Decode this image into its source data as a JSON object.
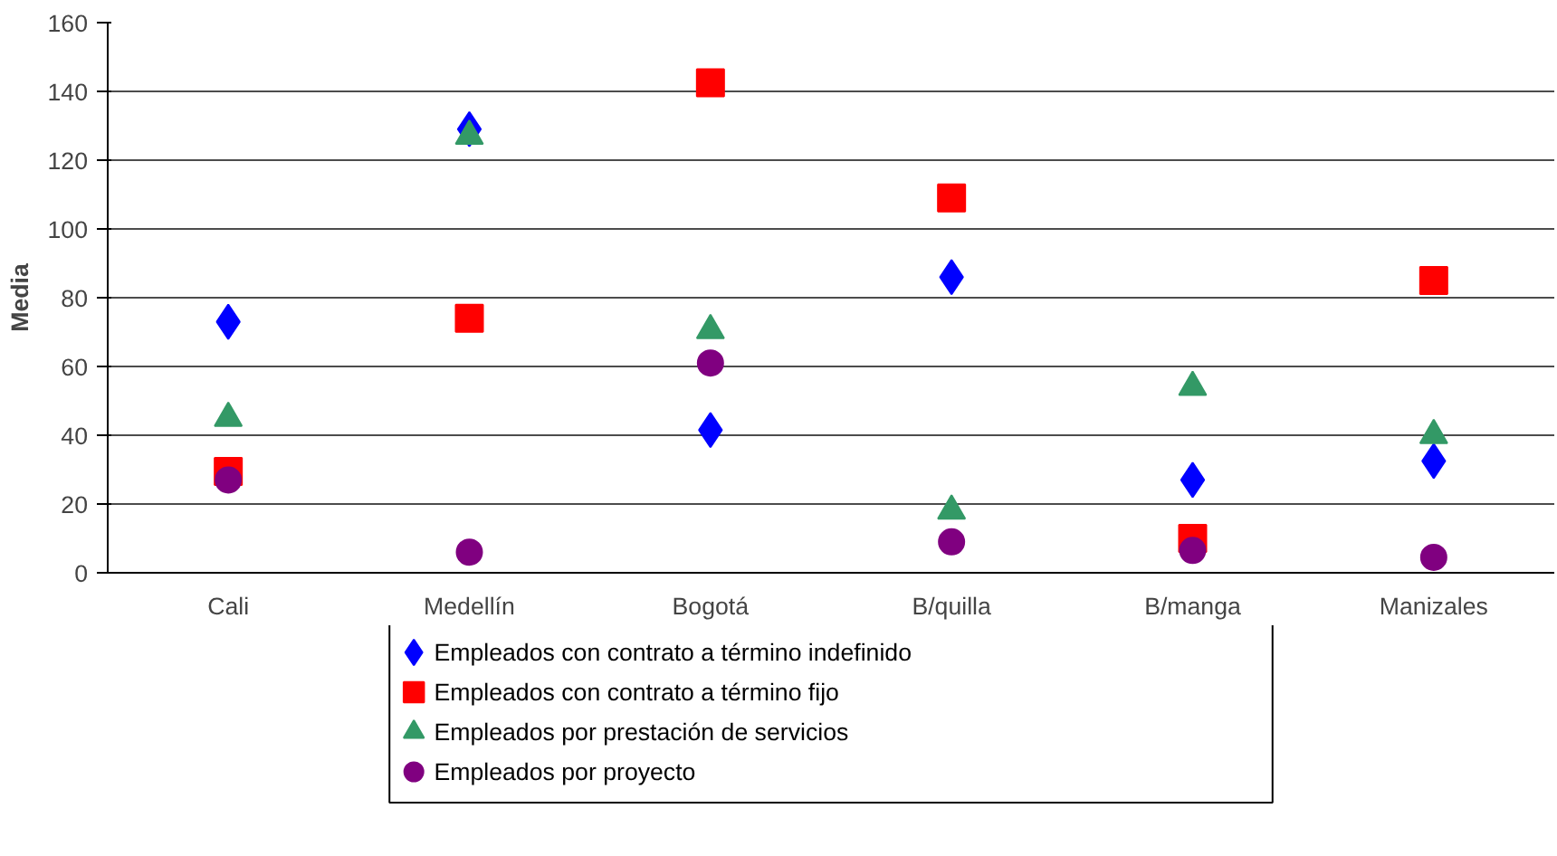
{
  "chart_data": {
    "type": "scatter",
    "ylabel": "Media",
    "categories": [
      "Cali",
      "Medellín",
      "Bogotá",
      "B/quilla",
      "B/manga",
      "Manizales"
    ],
    "series": [
      {
        "name": "Empleados con contrato a término indefinido",
        "color": "#0000ff",
        "marker": "diamond",
        "values": [
          73,
          129,
          41.5,
          86,
          27,
          32.5
        ]
      },
      {
        "name": "Empleados con contrato a término fijo",
        "color": "#ff0000",
        "marker": "square",
        "values": [
          29.5,
          74,
          142.5,
          109,
          10,
          85
        ]
      },
      {
        "name": "Empleados por prestación de servicios",
        "color": "#339966",
        "marker": "triangle",
        "values": [
          45,
          127,
          70.5,
          18,
          54,
          40
        ]
      },
      {
        "name": "Empleados por proyecto",
        "color": "#800080",
        "marker": "circle",
        "values": [
          27,
          6,
          61,
          9,
          6.5,
          4.5
        ]
      }
    ],
    "ylim": [
      0,
      160
    ],
    "yticks": [
      0,
      20,
      40,
      60,
      80,
      100,
      120,
      140,
      160
    ],
    "grid": "y",
    "legend": "bottom"
  }
}
